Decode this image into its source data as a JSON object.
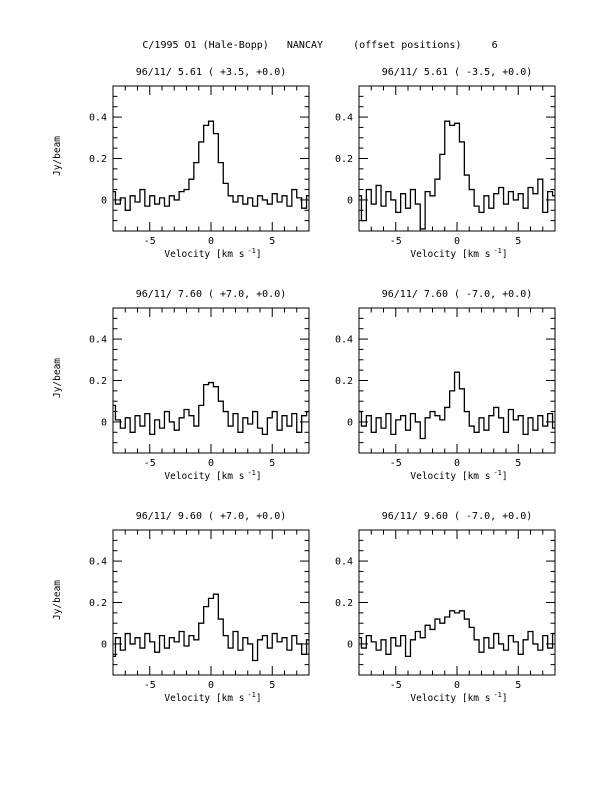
{
  "figure": {
    "title": "C/1995 O1 (Hale-Bopp)   NANCAY     (offset positions)     6"
  },
  "chart_data": [
    {
      "type": "line",
      "title": "96/11/ 5.61  ( +3.5, +0.0)",
      "xlabel": "Velocity [km s",
      "xlabel_sup": "-1",
      "xlabel_close": "]",
      "ylabel": "Jy/beam",
      "xlim": [
        -8,
        8
      ],
      "ylim": [
        -0.15,
        0.55
      ],
      "xticks": [
        "-5",
        "0",
        "5"
      ],
      "yticks": [
        "0",
        "0.2",
        "0.4"
      ],
      "series": [
        {
          "x": [
            -8.0,
            -7.6,
            -7.2,
            -6.8,
            -6.4,
            -6.0,
            -5.6,
            -5.2,
            -4.8,
            -4.4,
            -4.0,
            -3.6,
            -3.2,
            -2.8,
            -2.4,
            -2.0,
            -1.6,
            -1.2,
            -0.8,
            -0.4,
            0.0,
            0.4,
            0.8,
            1.2,
            1.6,
            2.0,
            2.4,
            2.8,
            3.2,
            3.6,
            4.0,
            4.4,
            4.8,
            5.2,
            5.6,
            6.0,
            6.4,
            6.8,
            7.2,
            7.6,
            8.0
          ],
          "y": [
            0.04,
            -0.02,
            0.01,
            -0.05,
            0.02,
            -0.01,
            0.05,
            -0.03,
            0.02,
            -0.02,
            0.01,
            -0.03,
            0.02,
            0.0,
            0.04,
            0.05,
            0.1,
            0.18,
            0.28,
            0.36,
            0.38,
            0.32,
            0.18,
            0.08,
            0.02,
            -0.01,
            0.02,
            -0.02,
            0.01,
            -0.03,
            0.02,
            0.0,
            -0.02,
            0.03,
            -0.01,
            0.02,
            -0.03,
            0.05,
            0.01,
            -0.04,
            0.02
          ]
        }
      ]
    },
    {
      "type": "line",
      "title": "96/11/ 5.61  ( -3.5, +0.0)",
      "xlabel": "Velocity [km s",
      "xlabel_sup": "-1",
      "xlabel_close": "]",
      "ylabel": "",
      "xlim": [
        -8,
        8
      ],
      "ylim": [
        -0.15,
        0.55
      ],
      "xticks": [
        "-5",
        "0",
        "5"
      ],
      "yticks": [
        "0",
        "0.2",
        "0.4"
      ],
      "series": [
        {
          "x": [
            -8.0,
            -7.6,
            -7.2,
            -6.8,
            -6.4,
            -6.0,
            -5.6,
            -5.2,
            -4.8,
            -4.4,
            -4.0,
            -3.6,
            -3.2,
            -2.8,
            -2.4,
            -2.0,
            -1.6,
            -1.2,
            -0.8,
            -0.4,
            0.0,
            0.4,
            0.8,
            1.2,
            1.6,
            2.0,
            2.4,
            2.8,
            3.2,
            3.6,
            4.0,
            4.4,
            4.8,
            5.2,
            5.6,
            6.0,
            6.4,
            6.8,
            7.2,
            7.6,
            8.0
          ],
          "y": [
            0.02,
            -0.1,
            0.05,
            -0.02,
            0.07,
            -0.03,
            0.04,
            0.0,
            -0.06,
            0.03,
            -0.04,
            0.05,
            -0.02,
            -0.14,
            0.04,
            0.02,
            0.1,
            0.22,
            0.38,
            0.36,
            0.37,
            0.28,
            0.12,
            0.05,
            -0.03,
            -0.06,
            0.02,
            -0.04,
            0.03,
            0.06,
            -0.02,
            0.04,
            0.0,
            0.03,
            -0.04,
            0.06,
            0.03,
            0.1,
            -0.06,
            0.04,
            0.02
          ]
        }
      ]
    },
    {
      "type": "line",
      "title": "96/11/ 7.60  ( +7.0, +0.0)",
      "xlabel": "Velocity [km s",
      "xlabel_sup": "-1",
      "xlabel_close": "]",
      "ylabel": "Jy/beam",
      "xlim": [
        -8,
        8
      ],
      "ylim": [
        -0.15,
        0.55
      ],
      "xticks": [
        "-5",
        "0",
        "5"
      ],
      "yticks": [
        "0",
        "0.2",
        "0.4"
      ],
      "series": [
        {
          "x": [
            -8.0,
            -7.6,
            -7.2,
            -6.8,
            -6.4,
            -6.0,
            -5.6,
            -5.2,
            -4.8,
            -4.4,
            -4.0,
            -3.6,
            -3.2,
            -2.8,
            -2.4,
            -2.0,
            -1.6,
            -1.2,
            -0.8,
            -0.4,
            0.0,
            0.4,
            0.8,
            1.2,
            1.6,
            2.0,
            2.4,
            2.8,
            3.2,
            3.6,
            4.0,
            4.4,
            4.8,
            5.2,
            5.6,
            6.0,
            6.4,
            6.8,
            7.2,
            7.6,
            8.0
          ],
          "y": [
            0.08,
            0.01,
            -0.03,
            0.02,
            -0.05,
            0.03,
            -0.02,
            0.04,
            -0.06,
            0.01,
            -0.03,
            0.05,
            0.0,
            -0.04,
            0.02,
            0.06,
            0.03,
            -0.02,
            0.08,
            0.18,
            0.19,
            0.17,
            0.1,
            0.05,
            -0.02,
            0.04,
            -0.05,
            0.02,
            -0.01,
            0.05,
            -0.03,
            -0.06,
            0.02,
            0.05,
            -0.04,
            0.03,
            -0.02,
            0.04,
            -0.05,
            0.03,
            0.05
          ]
        }
      ]
    },
    {
      "type": "line",
      "title": "96/11/ 7.60  ( -7.0, +0.0)",
      "xlabel": "Velocity [km s",
      "xlabel_sup": "-1",
      "xlabel_close": "]",
      "ylabel": "",
      "xlim": [
        -8,
        8
      ],
      "ylim": [
        -0.15,
        0.55
      ],
      "xticks": [
        "-5",
        "0",
        "5"
      ],
      "yticks": [
        "0",
        "0.2",
        "0.4"
      ],
      "series": [
        {
          "x": [
            -8.0,
            -7.6,
            -7.2,
            -6.8,
            -6.4,
            -6.0,
            -5.6,
            -5.2,
            -4.8,
            -4.4,
            -4.0,
            -3.6,
            -3.2,
            -2.8,
            -2.4,
            -2.0,
            -1.6,
            -1.2,
            -0.8,
            -0.4,
            0.0,
            0.4,
            0.8,
            1.2,
            1.6,
            2.0,
            2.4,
            2.8,
            3.2,
            3.6,
            4.0,
            4.4,
            4.8,
            5.2,
            5.6,
            6.0,
            6.4,
            6.8,
            7.2,
            7.6,
            8.0
          ],
          "y": [
            0.05,
            -0.02,
            0.03,
            -0.05,
            0.02,
            -0.03,
            0.04,
            -0.06,
            0.01,
            0.03,
            -0.04,
            0.04,
            0.0,
            -0.08,
            0.02,
            0.05,
            0.03,
            0.01,
            0.07,
            0.15,
            0.24,
            0.16,
            0.05,
            -0.02,
            -0.05,
            0.02,
            -0.04,
            0.03,
            0.07,
            0.02,
            -0.05,
            0.06,
            0.01,
            0.03,
            -0.06,
            0.02,
            -0.04,
            0.03,
            -0.02,
            0.04,
            -0.03
          ]
        }
      ]
    },
    {
      "type": "line",
      "title": "96/11/ 9.60  ( +7.0, +0.0)",
      "xlabel": "Velocity [km s",
      "xlabel_sup": "-1",
      "xlabel_close": "]",
      "ylabel": "Jy/beam",
      "xlim": [
        -8,
        8
      ],
      "ylim": [
        -0.15,
        0.55
      ],
      "xticks": [
        "-5",
        "0",
        "5"
      ],
      "yticks": [
        "0",
        "0.2",
        "0.4"
      ],
      "series": [
        {
          "x": [
            -8.0,
            -7.6,
            -7.2,
            -6.8,
            -6.4,
            -6.0,
            -5.6,
            -5.2,
            -4.8,
            -4.4,
            -4.0,
            -3.6,
            -3.2,
            -2.8,
            -2.4,
            -2.0,
            -1.6,
            -1.2,
            -0.8,
            -0.4,
            0.0,
            0.4,
            0.8,
            1.2,
            1.6,
            2.0,
            2.4,
            2.8,
            3.2,
            3.6,
            4.0,
            4.4,
            4.8,
            5.2,
            5.6,
            6.0,
            6.4,
            6.8,
            7.2,
            7.6,
            8.0
          ],
          "y": [
            -0.06,
            0.03,
            -0.03,
            0.05,
            0.0,
            0.03,
            -0.02,
            0.05,
            0.01,
            -0.04,
            0.04,
            -0.02,
            0.03,
            0.01,
            0.06,
            -0.01,
            0.04,
            0.02,
            0.1,
            0.18,
            0.22,
            0.24,
            0.12,
            0.04,
            -0.02,
            0.06,
            -0.03,
            0.03,
            0.0,
            -0.08,
            0.02,
            0.04,
            -0.02,
            0.05,
            0.01,
            0.03,
            -0.03,
            0.04,
            0.0,
            -0.05,
            0.02
          ]
        }
      ]
    },
    {
      "type": "line",
      "title": "96/11/ 9.60  ( -7.0, +0.0)",
      "xlabel": "Velocity [km s",
      "xlabel_sup": "-1",
      "xlabel_close": "]",
      "ylabel": "",
      "xlim": [
        -8,
        8
      ],
      "ylim": [
        -0.15,
        0.55
      ],
      "xticks": [
        "-5",
        "0",
        "5"
      ],
      "yticks": [
        "0",
        "0.2",
        "0.4"
      ],
      "series": [
        {
          "x": [
            -8.0,
            -7.6,
            -7.2,
            -6.8,
            -6.4,
            -6.0,
            -5.6,
            -5.2,
            -4.8,
            -4.4,
            -4.0,
            -3.6,
            -3.2,
            -2.8,
            -2.4,
            -2.0,
            -1.6,
            -1.2,
            -0.8,
            -0.4,
            0.0,
            0.4,
            0.8,
            1.2,
            1.6,
            2.0,
            2.4,
            2.8,
            3.2,
            3.6,
            4.0,
            4.4,
            4.8,
            5.2,
            5.6,
            6.0,
            6.4,
            6.8,
            7.2,
            7.6,
            8.0
          ],
          "y": [
            0.03,
            -0.02,
            0.04,
            0.01,
            -0.03,
            0.02,
            -0.05,
            0.03,
            -0.01,
            0.04,
            -0.06,
            0.02,
            0.06,
            0.03,
            0.09,
            0.07,
            0.12,
            0.1,
            0.13,
            0.16,
            0.15,
            0.16,
            0.12,
            0.08,
            0.02,
            -0.04,
            0.03,
            -0.02,
            0.05,
            0.0,
            -0.03,
            0.04,
            0.01,
            -0.05,
            0.02,
            0.06,
            0.0,
            -0.03,
            0.04,
            -0.02,
            0.05
          ]
        }
      ]
    }
  ]
}
